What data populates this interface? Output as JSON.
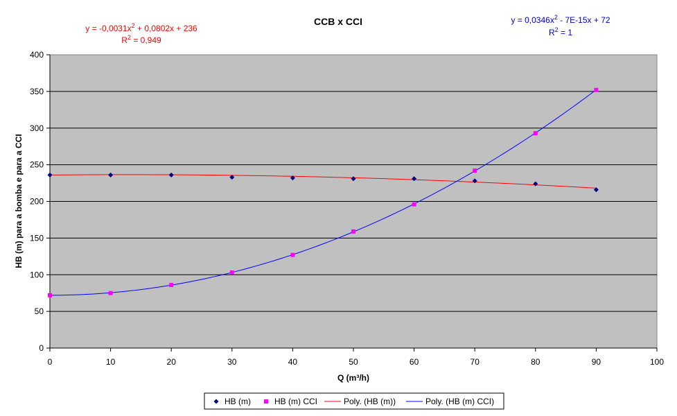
{
  "chart_data": {
    "type": "scatter",
    "title": "CCB x CCI",
    "xlabel": "Q (m³/h)",
    "ylabel": "HB (m) para a bomba e para a CCI",
    "xlim": [
      0,
      100
    ],
    "ylim": [
      0,
      400
    ],
    "x_ticks": [
      "0",
      "10",
      "20",
      "30",
      "40",
      "50",
      "60",
      "70",
      "80",
      "90",
      "100"
    ],
    "y_ticks": [
      "0",
      "50",
      "100",
      "150",
      "200",
      "250",
      "300",
      "350",
      "400"
    ],
    "grid": "horizontal",
    "legend_position": "bottom",
    "series": [
      {
        "name": "HB (m)",
        "kind": "points",
        "marker": "diamond",
        "color": "#000080",
        "x": [
          0,
          10,
          20,
          30,
          40,
          50,
          60,
          70,
          80,
          90
        ],
        "y": [
          236,
          236,
          236,
          233,
          232,
          231,
          231,
          228,
          224,
          216
        ]
      },
      {
        "name": "HB (m) CCI",
        "kind": "points",
        "marker": "square",
        "color": "#ff00ff",
        "x": [
          0,
          10,
          20,
          30,
          40,
          50,
          60,
          70,
          80,
          90
        ],
        "y": [
          72,
          75,
          86,
          103,
          127,
          159,
          196,
          242,
          293,
          352
        ]
      },
      {
        "name": "Poly. (HB (m))",
        "kind": "trend",
        "color": "#ff0000",
        "coefficients": [
          -0.0031,
          0.0802,
          236
        ]
      },
      {
        "name": "Poly. (HB (m) CCI)",
        "kind": "trend",
        "color": "#0000ff",
        "coefficients": [
          0.0346,
          0,
          72
        ]
      }
    ],
    "annotations": [
      {
        "line1": "y = -0,0031x",
        "sup": "2",
        "line1_rest": " + 0,0802x + 236",
        "r_label": "R",
        "r_sup": "2",
        "r_value": " = 0,949",
        "color": "#ff0000"
      },
      {
        "line1": "y = 0,0346x",
        "sup": "2",
        "line1_rest": " - 7E-15x + 72",
        "r_label": "R",
        "r_sup": "2",
        "r_value": " = 1",
        "color": "#0000cc"
      }
    ]
  }
}
